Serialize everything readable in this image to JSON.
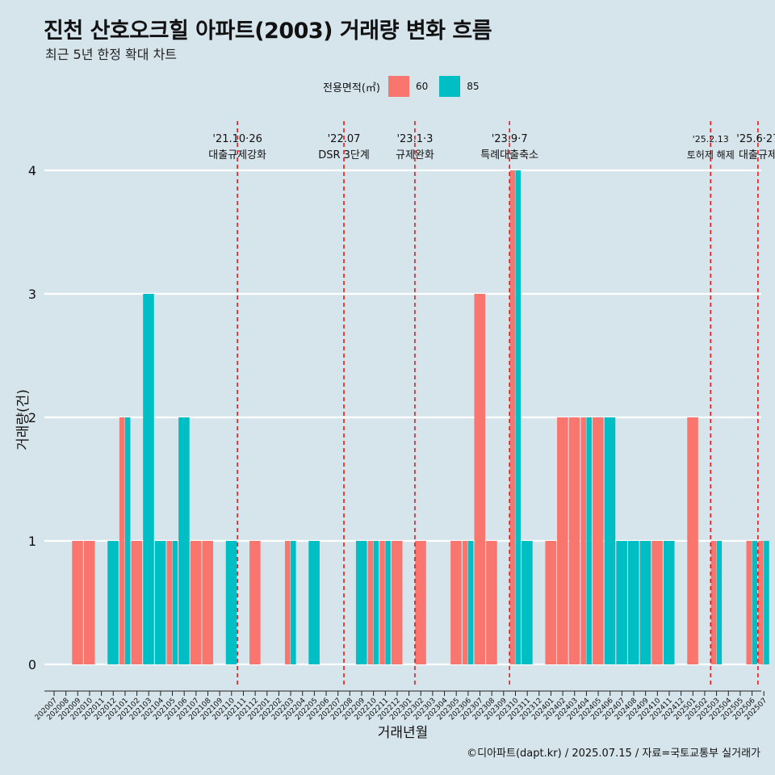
{
  "title": "진천 산호오크힐 아파트(2003) 거래량 변화 흐름",
  "subtitle": "최근 5년 한정 확대 차트",
  "caption": "©디아파트(dapt.kr) / 2025.07.15 / 자료=국토교통부 실거래가",
  "legend": {
    "title": "전용면적(㎡)",
    "items": [
      {
        "label": "60",
        "color": "#f8766d"
      },
      {
        "label": "85",
        "color": "#00bfc4"
      }
    ]
  },
  "chart_data": {
    "type": "bar",
    "xlabel": "거래년월",
    "ylabel": "거래량(건)",
    "ylim": [
      0,
      4
    ],
    "yticks": [
      0,
      1,
      2,
      3,
      4
    ],
    "categories": [
      "202007",
      "202008",
      "202009",
      "202010",
      "202011",
      "202012",
      "202101",
      "202102",
      "202103",
      "202104",
      "202105",
      "202106",
      "202107",
      "202108",
      "202109",
      "202110",
      "202111",
      "202112",
      "202201",
      "202202",
      "202203",
      "202204",
      "202205",
      "202206",
      "202207",
      "202208",
      "202209",
      "202210",
      "202211",
      "202212",
      "202301",
      "202302",
      "202303",
      "202304",
      "202305",
      "202306",
      "202307",
      "202308",
      "202309",
      "202310",
      "202311",
      "202312",
      "202401",
      "202402",
      "202403",
      "202404",
      "202405",
      "202406",
      "202407",
      "202408",
      "202409",
      "202410",
      "202411",
      "202412",
      "202501",
      "202502",
      "202503",
      "202504",
      "202505",
      "202506",
      "202507"
    ],
    "series": [
      {
        "name": "60",
        "color": "#f8766d",
        "values": [
          0,
          0,
          1,
          1,
          0,
          0,
          2,
          1,
          0,
          0,
          1,
          0,
          1,
          1,
          0,
          0,
          0,
          1,
          0,
          0,
          1,
          0,
          0,
          0,
          0,
          0,
          0,
          1,
          1,
          1,
          0,
          1,
          0,
          0,
          1,
          1,
          3,
          1,
          0,
          4,
          0,
          0,
          1,
          2,
          2,
          2,
          2,
          0,
          0,
          0,
          0,
          1,
          0,
          0,
          2,
          0,
          1,
          0,
          0,
          1,
          1
        ]
      },
      {
        "name": "85",
        "color": "#00bfc4",
        "values": [
          0,
          0,
          0,
          0,
          0,
          1,
          2,
          0,
          3,
          1,
          1,
          2,
          0,
          0,
          0,
          1,
          0,
          0,
          0,
          0,
          1,
          0,
          1,
          0,
          0,
          0,
          1,
          1,
          1,
          0,
          0,
          0,
          0,
          0,
          0,
          1,
          0,
          0,
          0,
          4,
          1,
          0,
          0,
          0,
          0,
          2,
          0,
          2,
          1,
          1,
          1,
          0,
          1,
          0,
          0,
          0,
          1,
          0,
          0,
          1,
          1
        ]
      }
    ],
    "events": [
      {
        "date": "202110",
        "line1": "'21.10·26",
        "line2": "대출규제강화"
      },
      {
        "date": "202207",
        "line1": "'22.07",
        "line2": "DSR 3단계"
      },
      {
        "date": "202301",
        "line1": "'23.1·3",
        "line2": "규제완화"
      },
      {
        "date": "202309",
        "line1": "'23.9·7",
        "line2": "특례대출축소"
      },
      {
        "date": "202502",
        "line1": "'25.2.13",
        "line2": "토허제 해제"
      },
      {
        "date": "202506",
        "line1": "'25.6·27",
        "line2": "대출규제"
      }
    ],
    "grid": true,
    "legend_position": "top"
  }
}
